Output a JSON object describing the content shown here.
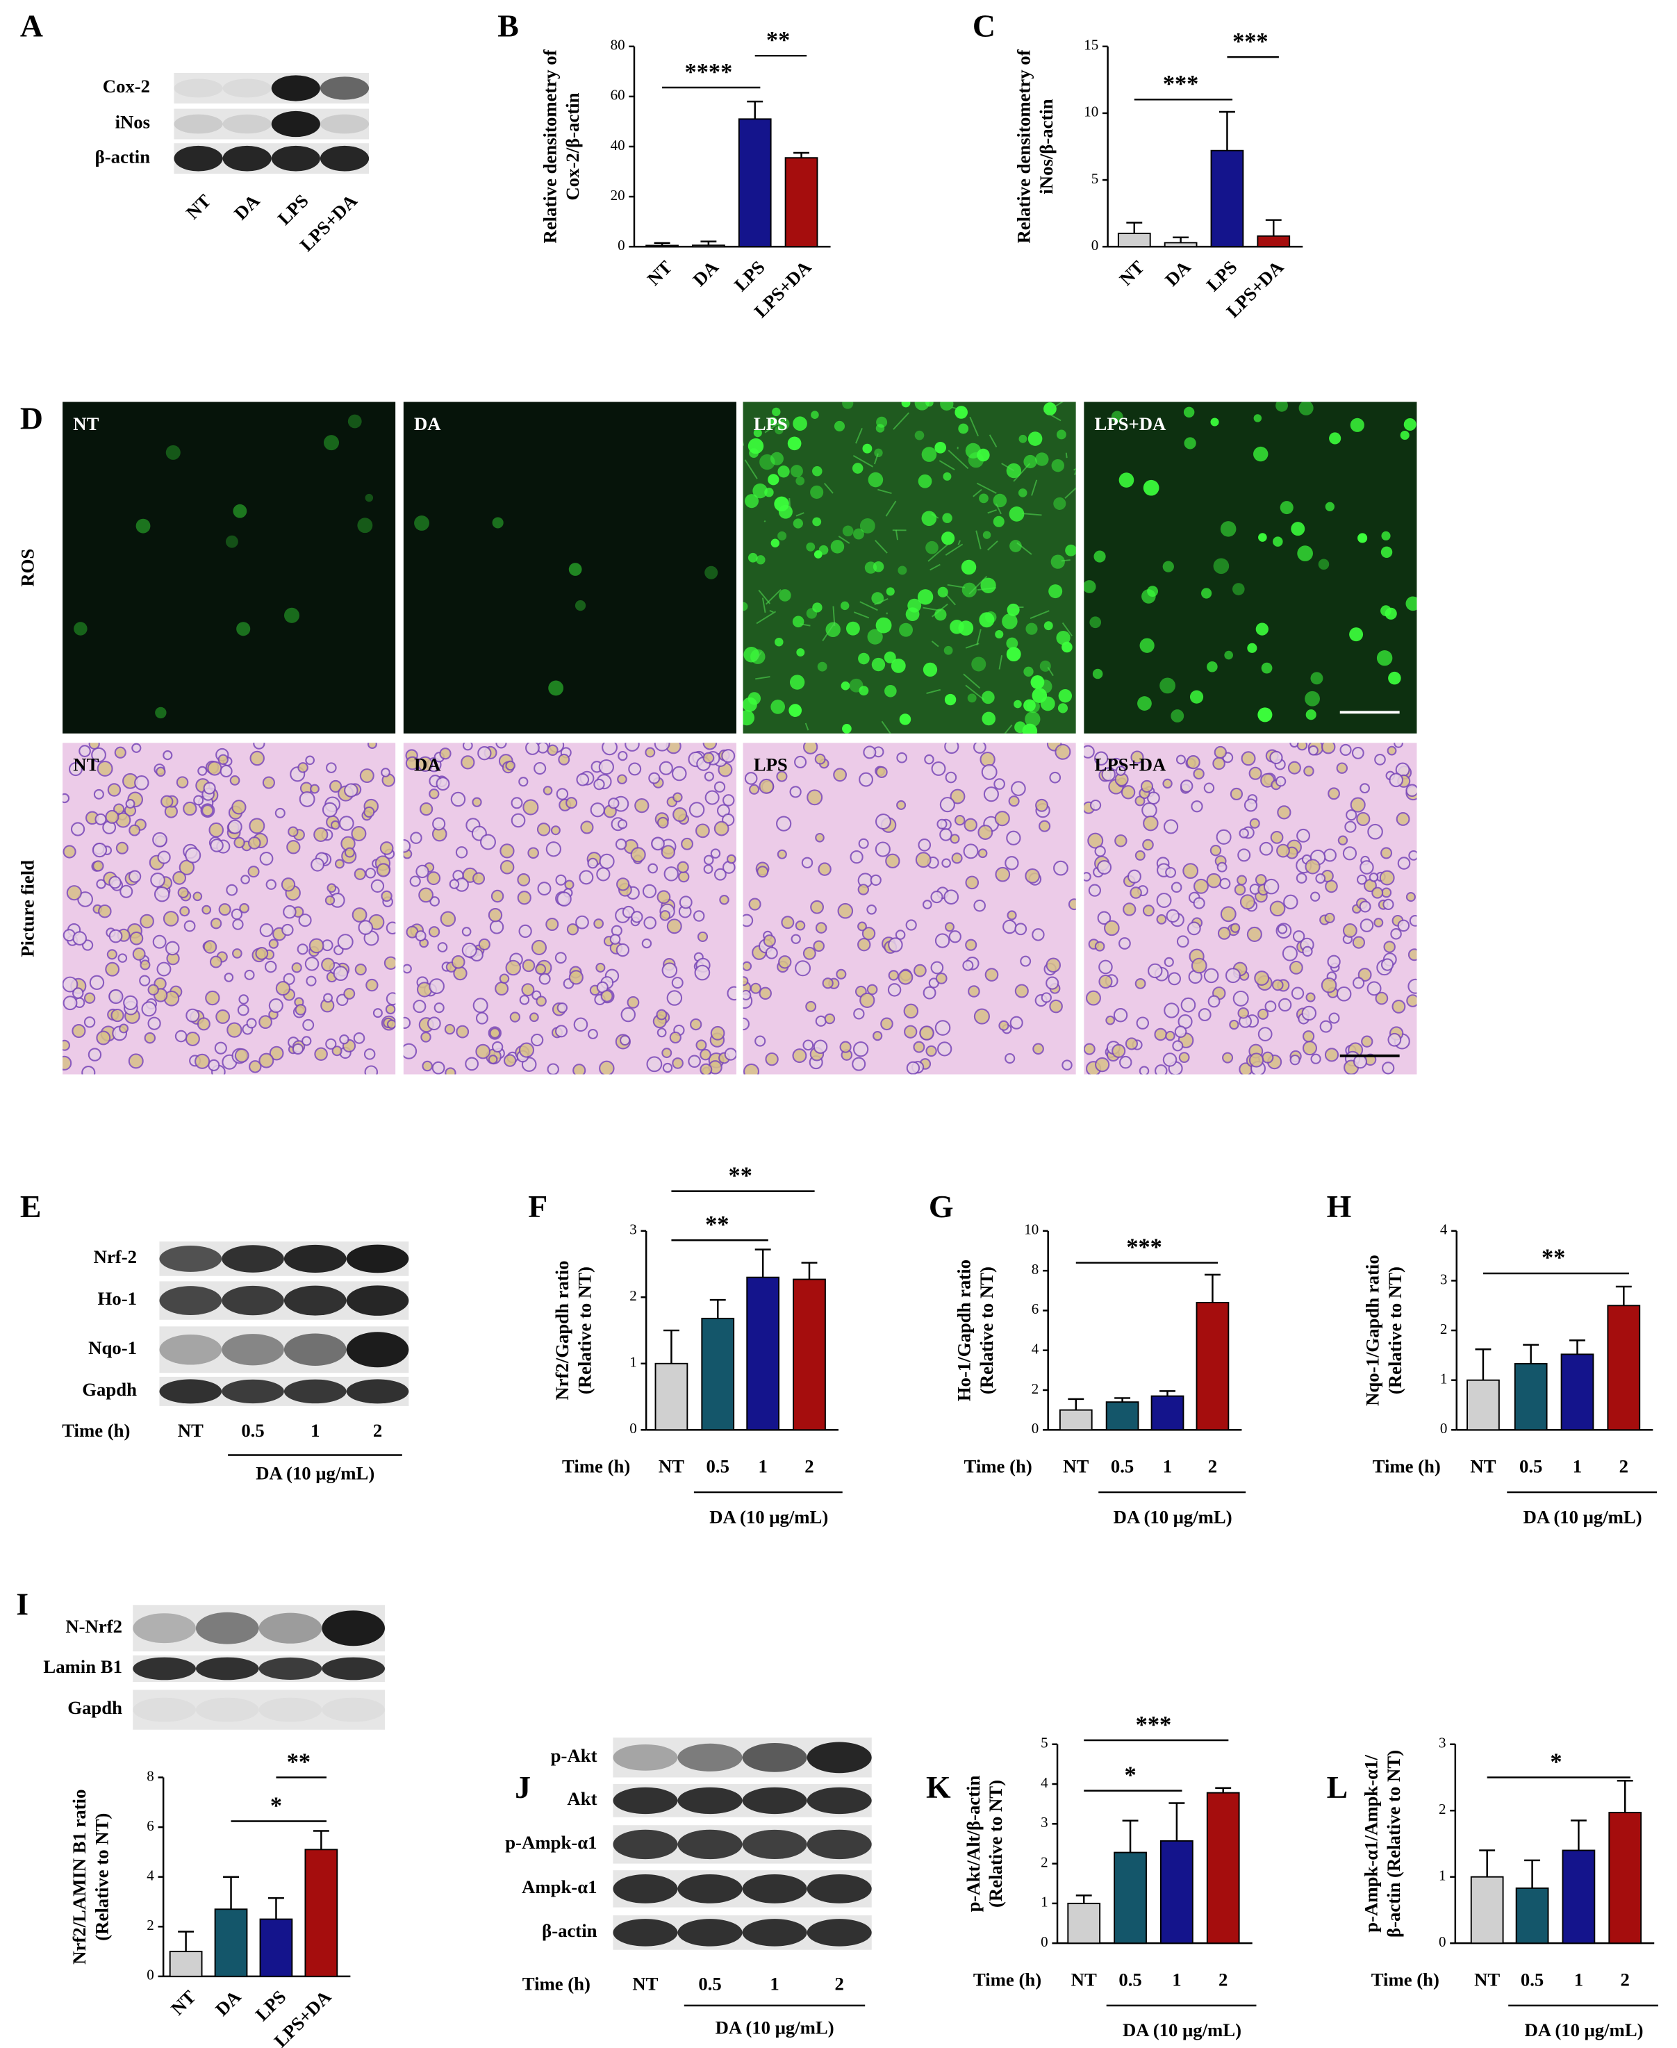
{
  "panel_labels": [
    "A",
    "B",
    "C",
    "D",
    "E",
    "F",
    "G",
    "H",
    "I",
    "J",
    "K",
    "L"
  ],
  "blots": [
    {
      "rows": [
        "Cox-2",
        "iNos",
        "β-actin"
      ],
      "lanes": [
        "NT",
        "DA",
        "LPS",
        "LPS+DA"
      ]
    },
    {
      "rows": [
        "Nrf-2",
        "Ho-1",
        "Nqo-1",
        "Gapdh"
      ],
      "lanes": [
        "NT",
        "0.5",
        "1",
        "2"
      ],
      "time_label": "Time (h)",
      "treatment": "DA (10 μg/mL)"
    },
    {
      "rows": [
        "N-Nrf2",
        "Lamin B1",
        "Gapdh"
      ]
    },
    {
      "rows": [
        "p-Akt",
        "Akt",
        "p-Ampk-α1",
        "Ampk-α1",
        "β-actin"
      ],
      "lanes": [
        "NT",
        "0.5",
        "1",
        "2"
      ],
      "time_label": "Time (h)",
      "treatment": "DA (10 μg/mL)"
    }
  ],
  "ros_imaging": {
    "rows": [
      "ROS",
      "Picture field"
    ],
    "columns": [
      "NT",
      "DA",
      "LPS",
      "LPS+DA"
    ]
  },
  "chart_data": [
    {
      "type": "bar",
      "ylabel": [
        "Relative densitometry of",
        "Cox-2/β-actin"
      ],
      "categories": [
        "NT",
        "DA",
        "LPS",
        "LPS+DA"
      ],
      "values": [
        0.5,
        0.6,
        51,
        35.5
      ],
      "errors": [
        1,
        1.5,
        7,
        2
      ],
      "colors": [
        "#d0d0d0",
        "#d0d0d0",
        "#14148c",
        "#a50d0d"
      ],
      "ylim": [
        0,
        80
      ],
      "yticks": [
        0,
        20,
        40,
        60,
        80
      ],
      "annotations": [
        "****",
        "**"
      ]
    },
    {
      "type": "bar",
      "ylabel": [
        "Relative densitometry of",
        "iNos/β-actin"
      ],
      "categories": [
        "NT",
        "DA",
        "LPS",
        "LPS+DA"
      ],
      "values": [
        1,
        0.3,
        7.2,
        0.8
      ],
      "errors": [
        0.8,
        0.4,
        2.9,
        1.2
      ],
      "colors": [
        "#d0d0d0",
        "#d0d0d0",
        "#14148c",
        "#a50d0d"
      ],
      "ylim": [
        0,
        15
      ],
      "yticks": [
        0,
        5,
        10,
        15
      ],
      "annotations": [
        "***",
        "***"
      ]
    },
    {
      "type": "bar",
      "ylabel": [
        "Nrf2/Gapdh ratio",
        "(Relative to NT)"
      ],
      "categories": [
        "NT",
        "0.5",
        "1",
        "2"
      ],
      "values": [
        1,
        1.68,
        2.3,
        2.27
      ],
      "errors": [
        0.5,
        0.28,
        0.42,
        0.25
      ],
      "colors": [
        "#d0d0d0",
        "#14566a",
        "#14148c",
        "#a50d0d"
      ],
      "ylim": [
        0,
        3
      ],
      "yticks": [
        0,
        1,
        2,
        3
      ],
      "annotations": [
        "**",
        "**"
      ],
      "x_title": "Time (h)",
      "group_label": "DA (10 μg/mL)"
    },
    {
      "type": "bar",
      "ylabel": [
        "Ho-1/Gapdh ratio",
        "(Relative to NT)"
      ],
      "categories": [
        "NT",
        "0.5",
        "1",
        "2"
      ],
      "values": [
        1,
        1.4,
        1.7,
        6.4
      ],
      "errors": [
        0.55,
        0.2,
        0.25,
        1.4
      ],
      "colors": [
        "#d0d0d0",
        "#14566a",
        "#14148c",
        "#a50d0d"
      ],
      "ylim": [
        0,
        10
      ],
      "yticks": [
        0,
        2,
        4,
        6,
        8,
        10
      ],
      "annotations": [
        "***"
      ],
      "x_title": "Time (h)",
      "group_label": "DA (10 μg/mL)"
    },
    {
      "type": "bar",
      "ylabel": [
        "Nqo-1/Gapdh ratio",
        "(Relative to NT)"
      ],
      "categories": [
        "NT",
        "0.5",
        "1",
        "2"
      ],
      "values": [
        1,
        1.33,
        1.52,
        2.5
      ],
      "errors": [
        0.62,
        0.38,
        0.28,
        0.38
      ],
      "colors": [
        "#d0d0d0",
        "#14566a",
        "#14148c",
        "#a50d0d"
      ],
      "ylim": [
        0,
        4
      ],
      "yticks": [
        0,
        1,
        2,
        3,
        4
      ],
      "annotations": [
        "**"
      ],
      "x_title": "Time (h)",
      "group_label": "DA (10 μg/mL)"
    },
    {
      "type": "bar",
      "ylabel": [
        "Nrf2/LAMIN B1 ratio",
        "(Relative to NT)"
      ],
      "categories": [
        "NT",
        "DA",
        "LPS",
        "LPS+DA"
      ],
      "values": [
        1,
        2.7,
        2.3,
        5.1
      ],
      "errors": [
        0.8,
        1.3,
        0.85,
        0.75
      ],
      "colors": [
        "#d0d0d0",
        "#14566a",
        "#14148c",
        "#a50d0d"
      ],
      "ylim": [
        0,
        8
      ],
      "yticks": [
        0,
        2,
        4,
        6,
        8
      ],
      "annotations": [
        "*",
        "**"
      ]
    },
    {
      "type": "bar",
      "ylabel": [
        "p-Akt/Alt/β-actin",
        "(Relative to NT)"
      ],
      "categories": [
        "NT",
        "0.5",
        "1",
        "2"
      ],
      "values": [
        1,
        2.28,
        2.57,
        3.78
      ],
      "errors": [
        0.2,
        0.8,
        0.95,
        0.12
      ],
      "colors": [
        "#d0d0d0",
        "#14566a",
        "#14148c",
        "#a50d0d"
      ],
      "ylim": [
        0,
        5
      ],
      "yticks": [
        0,
        1,
        2,
        3,
        4,
        5
      ],
      "annotations": [
        "*",
        "***"
      ],
      "x_title": "Time (h)",
      "group_label": "DA (10 μg/mL)"
    },
    {
      "type": "bar",
      "ylabel": [
        "p-Ampk-α1/Ampk-α1/",
        "β-actin (Relative to NT)"
      ],
      "categories": [
        "NT",
        "0.5",
        "1",
        "2"
      ],
      "values": [
        1,
        0.83,
        1.4,
        1.97
      ],
      "errors": [
        0.4,
        0.42,
        0.45,
        0.48
      ],
      "colors": [
        "#d0d0d0",
        "#14566a",
        "#14148c",
        "#a50d0d"
      ],
      "ylim": [
        0,
        3
      ],
      "yticks": [
        0,
        1,
        2,
        3
      ],
      "annotations": [
        "*"
      ],
      "x_title": "Time (h)",
      "group_label": "DA (10 μg/mL)"
    }
  ]
}
